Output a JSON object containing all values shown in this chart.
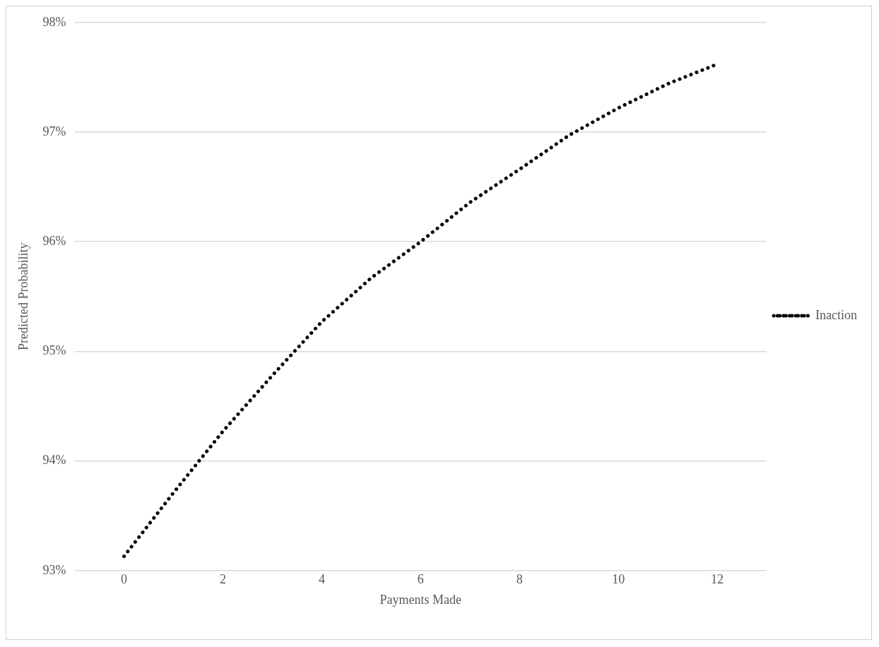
{
  "chart_data": {
    "type": "line",
    "xlabel": "Payments Made",
    "ylabel": "Predicted Probability",
    "x": [
      0,
      1,
      2,
      3,
      4,
      5,
      6,
      7,
      8,
      9,
      10,
      11,
      12
    ],
    "series": [
      {
        "name": "Inaction",
        "color": "#000000",
        "values": [
          93.13,
          93.71,
          94.27,
          94.78,
          95.27,
          95.67,
          96.0,
          96.36,
          96.66,
          96.97,
          97.22,
          97.44,
          97.62
        ]
      }
    ],
    "xlim": [
      -1,
      13
    ],
    "xticks": [
      0,
      2,
      4,
      6,
      8,
      10,
      12
    ],
    "ylim": [
      93,
      98
    ],
    "yticks": [
      {
        "value": 93,
        "label": "93%"
      },
      {
        "value": 94,
        "label": "94%"
      },
      {
        "value": 95,
        "label": "95%"
      },
      {
        "value": 96,
        "label": "96%"
      },
      {
        "value": 97,
        "label": "97%"
      },
      {
        "value": 98,
        "label": "98%"
      }
    ],
    "grid": "y",
    "legend": "right",
    "marker": "none",
    "line_style": "dotted"
  }
}
